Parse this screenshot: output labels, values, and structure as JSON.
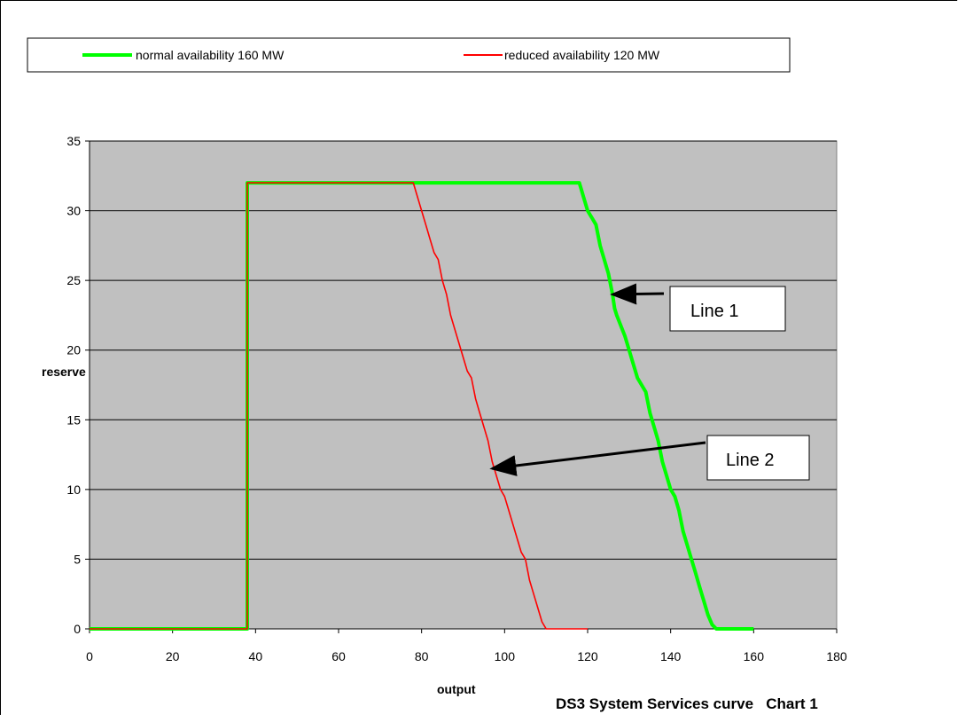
{
  "chart_data": {
    "type": "line",
    "title": "DS3 System Services curve   Chart 1",
    "xlabel": "output",
    "ylabel": "reserve",
    "xlim": [
      0,
      180
    ],
    "ylim": [
      0,
      35
    ],
    "xticks": [
      0,
      20,
      40,
      60,
      80,
      100,
      120,
      140,
      160,
      180
    ],
    "yticks": [
      0,
      5,
      10,
      15,
      20,
      25,
      30,
      35
    ],
    "grid": "horizontal",
    "plot_background": "#c0c0c0",
    "legend_position": "top",
    "series": [
      {
        "name": "normal availability 160 MW",
        "color": "#00ff00",
        "points": [
          [
            0,
            0
          ],
          [
            38,
            0
          ],
          [
            38,
            32
          ],
          [
            118,
            32
          ],
          [
            118.5,
            31.5
          ],
          [
            119,
            31
          ],
          [
            120,
            30
          ],
          [
            121,
            29.5
          ],
          [
            122,
            29
          ],
          [
            123,
            27.5
          ],
          [
            125,
            25.5
          ],
          [
            126,
            24
          ],
          [
            126.5,
            23
          ],
          [
            127,
            22.5
          ],
          [
            129,
            21
          ],
          [
            130,
            20
          ],
          [
            131,
            19
          ],
          [
            132,
            18
          ],
          [
            133,
            17.5
          ],
          [
            134,
            17
          ],
          [
            135,
            15.5
          ],
          [
            137,
            13.5
          ],
          [
            138,
            12
          ],
          [
            139,
            11
          ],
          [
            140,
            10
          ],
          [
            141,
            9.5
          ],
          [
            142,
            8.5
          ],
          [
            143,
            7
          ],
          [
            144,
            6
          ],
          [
            145,
            5
          ],
          [
            146,
            4
          ],
          [
            147,
            3
          ],
          [
            148,
            2
          ],
          [
            149,
            1
          ],
          [
            150,
            0.3
          ],
          [
            151,
            0
          ],
          [
            160,
            0
          ]
        ]
      },
      {
        "name": "reduced availability 120 MW",
        "color": "#ff0000",
        "points": [
          [
            0,
            0
          ],
          [
            38,
            0
          ],
          [
            38,
            32
          ],
          [
            78,
            32
          ],
          [
            79,
            31
          ],
          [
            80,
            30
          ],
          [
            81,
            29
          ],
          [
            82,
            28
          ],
          [
            83,
            27
          ],
          [
            84,
            26.5
          ],
          [
            85,
            25
          ],
          [
            86,
            24
          ],
          [
            87,
            22.5
          ],
          [
            88,
            21.5
          ],
          [
            89,
            20.5
          ],
          [
            90,
            19.5
          ],
          [
            91,
            18.5
          ],
          [
            92,
            18
          ],
          [
            93,
            16.5
          ],
          [
            94,
            15.5
          ],
          [
            95,
            14.5
          ],
          [
            96,
            13.5
          ],
          [
            97,
            12
          ],
          [
            98,
            11
          ],
          [
            99,
            10
          ],
          [
            100,
            9.5
          ],
          [
            101,
            8.5
          ],
          [
            102,
            7.5
          ],
          [
            103,
            6.5
          ],
          [
            104,
            5.5
          ],
          [
            105,
            5
          ],
          [
            106,
            3.5
          ],
          [
            107,
            2.5
          ],
          [
            108,
            1.5
          ],
          [
            109,
            0.5
          ],
          [
            110,
            0
          ],
          [
            120,
            0
          ]
        ]
      }
    ],
    "annotations": [
      {
        "label": "Line 1",
        "target_series": "normal availability 160 MW",
        "arrow_to": [
          126,
          24
        ]
      },
      {
        "label": "Line 2",
        "target_series": "reduced availability 120 MW",
        "arrow_to": [
          97,
          11.5
        ]
      }
    ]
  }
}
